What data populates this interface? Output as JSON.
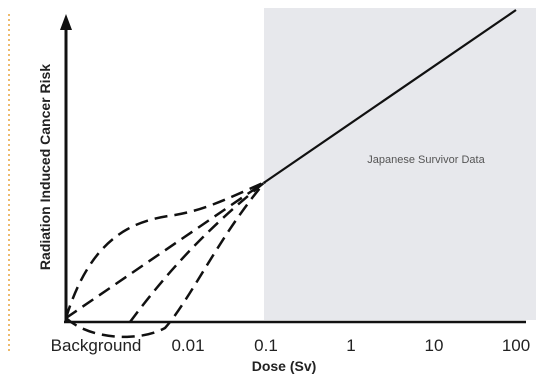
{
  "chart_data": {
    "type": "line",
    "title": "",
    "xlabel": "Dose (Sv)",
    "ylabel": "Radiation Induced Cancer Risk",
    "x_scale": "log",
    "x_ticks": [
      "Background",
      "0.01",
      "0.1",
      "1",
      "10",
      "100"
    ],
    "shaded_region": {
      "from": "0.1",
      "to": "100",
      "label": "Japanese Survivor Data",
      "color": "#e7e8ec"
    },
    "series": [
      {
        "style": "solid",
        "color": "#111111",
        "segment": "observed data, 0.1 to 100 Sv"
      },
      {
        "style": "dashed",
        "color": "#111111",
        "segment": "linear no-threshold extrapolation"
      },
      {
        "style": "dashed",
        "color": "#111111",
        "segment": "supralinear extrapolation"
      },
      {
        "style": "dashed",
        "color": "#111111",
        "segment": "threshold extrapolation"
      },
      {
        "style": "dashed",
        "color": "#111111",
        "segment": "hormesis extrapolation"
      }
    ],
    "grid": false,
    "legend": "none"
  },
  "colors": {
    "line": "#111111",
    "shade": "#e7e8ec",
    "left_rule": "#e8a33c"
  }
}
